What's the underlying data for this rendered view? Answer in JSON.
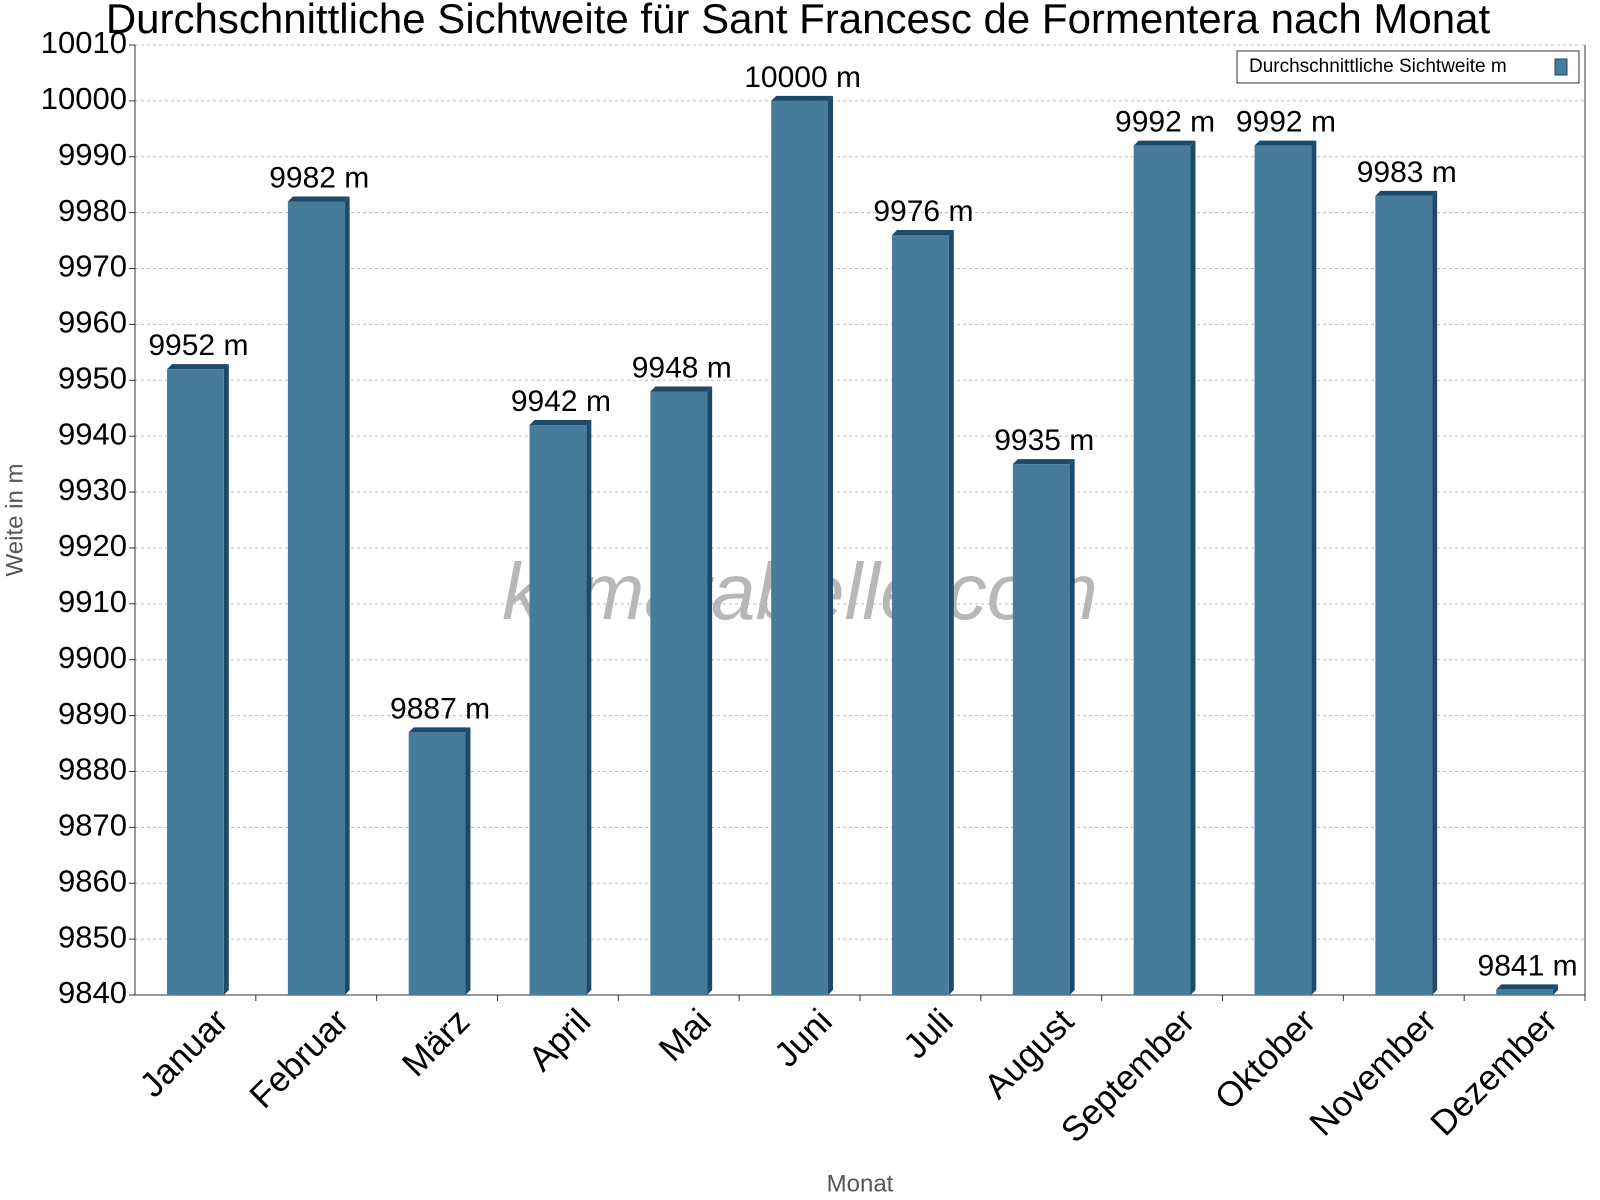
{
  "chart_data": {
    "type": "bar",
    "title": "Durchschnittliche Sichtweite für Sant Francesc de Formentera nach Monat",
    "x_label": "Monat",
    "y_label": "Weite in m",
    "watermark": "klimatabelle.com",
    "categories": [
      "Januar",
      "Februar",
      "März",
      "April",
      "Mai",
      "Juni",
      "Juli",
      "August",
      "September",
      "Oktober",
      "November",
      "Dezember"
    ],
    "series": [
      {
        "name": "Durchschnittliche Sichtweite m",
        "color": "#467b9c",
        "values": [
          9952,
          9982,
          9887,
          9942,
          9948,
          10000,
          9976,
          9935,
          9992,
          9992,
          9983,
          9841
        ],
        "value_labels": [
          "9952 m",
          "9982 m",
          "9887 m",
          "9942 m",
          "9948 m",
          "10000 m",
          "9976 m",
          "9935 m",
          "9992 m",
          "9992 m",
          "9983 m",
          "9841 m"
        ]
      }
    ],
    "ylim": [
      9840,
      10010
    ],
    "yticks": [
      9840,
      9850,
      9860,
      9870,
      9880,
      9890,
      9900,
      9910,
      9920,
      9930,
      9940,
      9950,
      9960,
      9970,
      9980,
      9990,
      10000,
      10010
    ],
    "grid": true,
    "legend": "top-right"
  }
}
